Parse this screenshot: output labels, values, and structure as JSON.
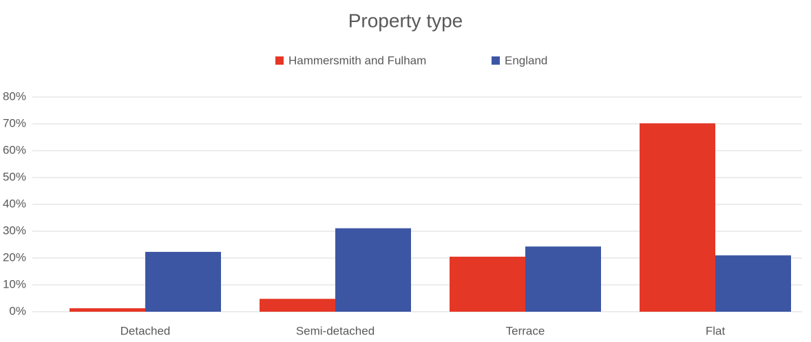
{
  "chart_data": {
    "type": "bar",
    "title": "Property type",
    "categories": [
      "Detached",
      "Semi-detached",
      "Terrace",
      "Flat"
    ],
    "series": [
      {
        "name": "Hammersmith and Fulham",
        "color": "#e53726",
        "values": [
          1.3,
          4.8,
          20.5,
          70.2
        ]
      },
      {
        "name": "England",
        "color": "#3c56a4",
        "values": [
          22.3,
          31.1,
          24.3,
          21.0
        ]
      }
    ],
    "ylim": [
      0,
      80
    ],
    "yticks": [
      {
        "value": 0,
        "label": "0%"
      },
      {
        "value": 10,
        "label": "10%"
      },
      {
        "value": 20,
        "label": "20%"
      },
      {
        "value": 30,
        "label": "30%"
      },
      {
        "value": 40,
        "label": "40%"
      },
      {
        "value": 50,
        "label": "50%"
      },
      {
        "value": 60,
        "label": "60%"
      },
      {
        "value": 70,
        "label": "70%"
      },
      {
        "value": 80,
        "label": "80%"
      }
    ],
    "grid": true,
    "legend": "top"
  }
}
